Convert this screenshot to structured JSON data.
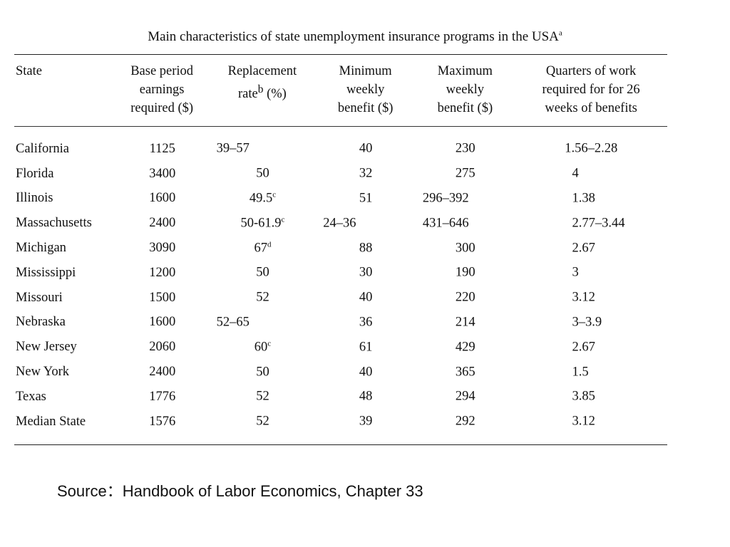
{
  "title": "Main characteristics of state unemployment insurance programs in the USA",
  "title_note": "a",
  "headers": [
    {
      "text": "State",
      "note": ""
    },
    {
      "text": "Base period earnings required ($)",
      "note": ""
    },
    {
      "text": "Replacement rate",
      "note": "b",
      "suffix": " (%)"
    },
    {
      "text": "Minimum weekly benefit ($)",
      "note": ""
    },
    {
      "text": "Maximum weekly benefit ($)",
      "note": ""
    },
    {
      "text": "Quarters of work required for for 26 weeks of benefits",
      "note": ""
    }
  ],
  "rows": [
    {
      "state": "California",
      "base": "1125",
      "repl": "39–57",
      "repl_note": "",
      "repl_align": "left",
      "min": "40",
      "min_align": "center",
      "max": "230",
      "max_align": "center",
      "qtr": "1.56–2.28",
      "qtr_align": "center"
    },
    {
      "state": "Florida",
      "base": "3400",
      "repl": "50",
      "repl_note": "",
      "repl_align": "center",
      "min": "32",
      "min_align": "center",
      "max": "275",
      "max_align": "center",
      "qtr": "4",
      "qtr_align": "mid"
    },
    {
      "state": "Illinois",
      "base": "1600",
      "repl": "49.5",
      "repl_note": "c",
      "repl_align": "center",
      "min": "51",
      "min_align": "center",
      "max": "296–392",
      "max_align": "left",
      "qtr": "1.38",
      "qtr_align": "mid"
    },
    {
      "state": "Massachusetts",
      "base": "2400",
      "repl": "50-61.9",
      "repl_note": "c",
      "repl_align": "center",
      "min": "24–36",
      "min_align": "left",
      "max": "431–646",
      "max_align": "left",
      "qtr": "2.77–3.44",
      "qtr_align": "mid"
    },
    {
      "state": "Michigan",
      "base": "3090",
      "repl": "67",
      "repl_note": "d",
      "repl_align": "center",
      "min": "88",
      "min_align": "center",
      "max": "300",
      "max_align": "center",
      "qtr": "2.67",
      "qtr_align": "mid"
    },
    {
      "state": "Mississippi",
      "base": "1200",
      "repl": "50",
      "repl_note": "",
      "repl_align": "center",
      "min": "30",
      "min_align": "center",
      "max": "190",
      "max_align": "center",
      "qtr": "3",
      "qtr_align": "mid"
    },
    {
      "state": "Missouri",
      "base": "1500",
      "repl": "52",
      "repl_note": "",
      "repl_align": "center",
      "min": "40",
      "min_align": "center",
      "max": "220",
      "max_align": "center",
      "qtr": "3.12",
      "qtr_align": "mid"
    },
    {
      "state": "Nebraska",
      "base": "1600",
      "repl": "52–65",
      "repl_note": "",
      "repl_align": "left",
      "min": "36",
      "min_align": "center",
      "max": "214",
      "max_align": "center",
      "qtr": "3–3.9",
      "qtr_align": "mid"
    },
    {
      "state": "New Jersey",
      "base": "2060",
      "repl": "60",
      "repl_note": "c",
      "repl_align": "center",
      "min": "61",
      "min_align": "center",
      "max": "429",
      "max_align": "center",
      "qtr": "2.67",
      "qtr_align": "mid"
    },
    {
      "state": "New York",
      "base": "2400",
      "repl": "50",
      "repl_note": "",
      "repl_align": "center",
      "min": "40",
      "min_align": "center",
      "max": "365",
      "max_align": "center",
      "qtr": "1.5",
      "qtr_align": "mid"
    },
    {
      "state": "Texas",
      "base": "1776",
      "repl": "52",
      "repl_note": "",
      "repl_align": "center",
      "min": "48",
      "min_align": "center",
      "max": "294",
      "max_align": "center",
      "qtr": "3.85",
      "qtr_align": "mid"
    },
    {
      "state": "Median State",
      "base": "1576",
      "repl": "52",
      "repl_note": "",
      "repl_align": "center",
      "min": "39",
      "min_align": "center",
      "max": "292",
      "max_align": "center",
      "qtr": "3.12",
      "qtr_align": "mid"
    }
  ],
  "source": "Source：Handbook of Labor Economics, Chapter 33"
}
